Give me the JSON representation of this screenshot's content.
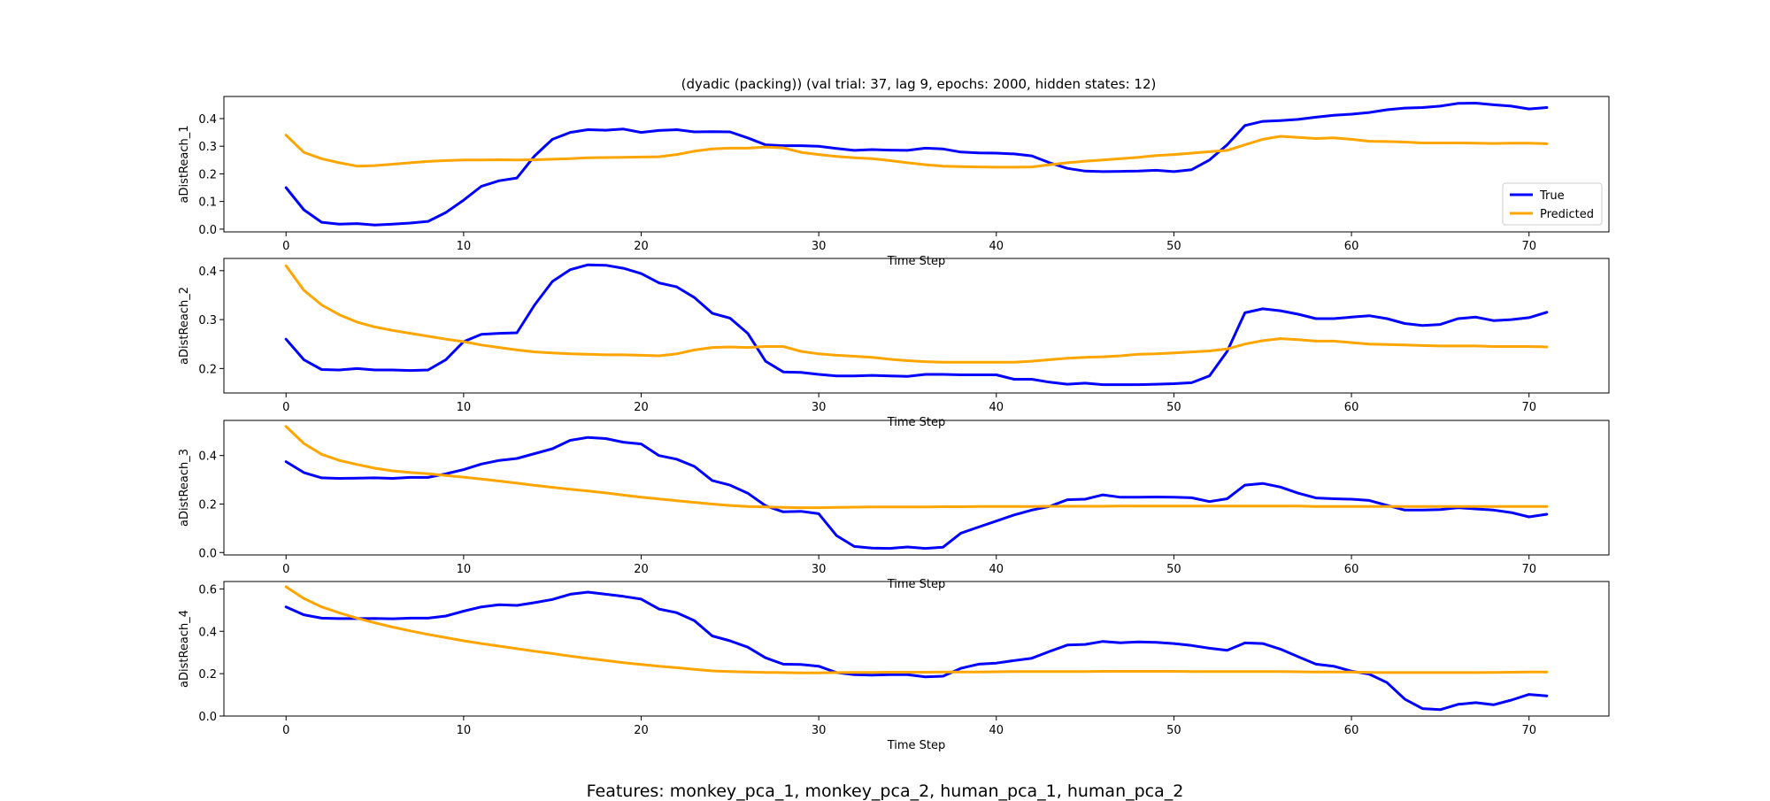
{
  "figure": {
    "title": "(dyadic (packing)) (val trial: 37, lag 9, epochs: 2000, hidden states: 12)",
    "footer": "Features: monkey_pca_1, monkey_pca_2, human_pca_1, human_pca_2"
  },
  "colors": {
    "true": "#0000ff",
    "predicted": "#ffa500"
  },
  "chart_data": [
    {
      "type": "line",
      "xlabel": "Time Step",
      "ylabel": "aDistReach_1",
      "xlim": [
        -3.5,
        74.5
      ],
      "ylim": [
        -0.01,
        0.48
      ],
      "xticks": [
        0,
        10,
        20,
        30,
        40,
        50,
        60,
        70
      ],
      "yticks": [
        0.0,
        0.1,
        0.2,
        0.3,
        0.4
      ],
      "ytick_labels": [
        "0.0",
        "0.1",
        "0.2",
        "0.3",
        "0.4"
      ],
      "legend": {
        "placement": "lower-right",
        "entries": [
          "True",
          "Predicted"
        ]
      },
      "series": [
        {
          "name": "True",
          "values": [
            0.15,
            0.07,
            0.025,
            0.018,
            0.02,
            0.015,
            0.018,
            0.022,
            0.028,
            0.06,
            0.105,
            0.155,
            0.175,
            0.185,
            0.265,
            0.325,
            0.35,
            0.36,
            0.358,
            0.362,
            0.35,
            0.357,
            0.36,
            0.352,
            0.353,
            0.352,
            0.33,
            0.305,
            0.302,
            0.302,
            0.3,
            0.292,
            0.285,
            0.288,
            0.286,
            0.285,
            0.293,
            0.29,
            0.279,
            0.276,
            0.275,
            0.272,
            0.265,
            0.24,
            0.22,
            0.21,
            0.208,
            0.209,
            0.21,
            0.213,
            0.208,
            0.215,
            0.25,
            0.305,
            0.375,
            0.39,
            0.393,
            0.397,
            0.405,
            0.412,
            0.416,
            0.422,
            0.432,
            0.438,
            0.44,
            0.445,
            0.455,
            0.456,
            0.45,
            0.445,
            0.435,
            0.44
          ]
        },
        {
          "name": "Predicted",
          "values": [
            0.34,
            0.278,
            0.255,
            0.24,
            0.228,
            0.23,
            0.235,
            0.24,
            0.245,
            0.248,
            0.25,
            0.25,
            0.251,
            0.25,
            0.251,
            0.253,
            0.255,
            0.258,
            0.259,
            0.26,
            0.261,
            0.262,
            0.27,
            0.282,
            0.29,
            0.293,
            0.293,
            0.297,
            0.294,
            0.278,
            0.27,
            0.263,
            0.258,
            0.255,
            0.248,
            0.24,
            0.233,
            0.228,
            0.226,
            0.225,
            0.224,
            0.224,
            0.225,
            0.233,
            0.24,
            0.246,
            0.25,
            0.255,
            0.26,
            0.266,
            0.27,
            0.275,
            0.28,
            0.285,
            0.305,
            0.325,
            0.336,
            0.332,
            0.328,
            0.33,
            0.325,
            0.318,
            0.317,
            0.315,
            0.312,
            0.312,
            0.312,
            0.311,
            0.31,
            0.311,
            0.311,
            0.309
          ]
        }
      ]
    },
    {
      "type": "line",
      "xlabel": "Time Step",
      "ylabel": "aDistReach_2",
      "xlim": [
        -3.5,
        74.5
      ],
      "ylim": [
        0.15,
        0.425
      ],
      "xticks": [
        0,
        10,
        20,
        30,
        40,
        50,
        60,
        70
      ],
      "yticks": [
        0.2,
        0.3,
        0.4
      ],
      "ytick_labels": [
        "0.2",
        "0.3",
        "0.4"
      ],
      "series": [
        {
          "name": "True",
          "values": [
            0.26,
            0.218,
            0.198,
            0.197,
            0.2,
            0.197,
            0.197,
            0.196,
            0.197,
            0.218,
            0.255,
            0.27,
            0.272,
            0.273,
            0.33,
            0.378,
            0.402,
            0.412,
            0.411,
            0.405,
            0.394,
            0.375,
            0.367,
            0.345,
            0.313,
            0.303,
            0.272,
            0.215,
            0.193,
            0.192,
            0.188,
            0.185,
            0.185,
            0.186,
            0.185,
            0.184,
            0.188,
            0.188,
            0.187,
            0.187,
            0.187,
            0.178,
            0.178,
            0.172,
            0.168,
            0.17,
            0.167,
            0.167,
            0.167,
            0.168,
            0.169,
            0.171,
            0.185,
            0.235,
            0.314,
            0.322,
            0.318,
            0.311,
            0.302,
            0.302,
            0.305,
            0.308,
            0.302,
            0.292,
            0.288,
            0.29,
            0.302,
            0.305,
            0.298,
            0.3,
            0.304,
            0.315
          ]
        },
        {
          "name": "Predicted",
          "values": [
            0.41,
            0.36,
            0.33,
            0.31,
            0.295,
            0.285,
            0.278,
            0.272,
            0.266,
            0.26,
            0.255,
            0.248,
            0.243,
            0.238,
            0.234,
            0.232,
            0.23,
            0.229,
            0.228,
            0.228,
            0.227,
            0.226,
            0.23,
            0.238,
            0.243,
            0.244,
            0.243,
            0.245,
            0.245,
            0.235,
            0.23,
            0.227,
            0.225,
            0.223,
            0.219,
            0.216,
            0.214,
            0.213,
            0.213,
            0.213,
            0.213,
            0.213,
            0.215,
            0.218,
            0.221,
            0.223,
            0.224,
            0.226,
            0.229,
            0.23,
            0.232,
            0.234,
            0.236,
            0.24,
            0.25,
            0.257,
            0.261,
            0.259,
            0.256,
            0.256,
            0.253,
            0.25,
            0.249,
            0.248,
            0.247,
            0.246,
            0.246,
            0.246,
            0.245,
            0.245,
            0.245,
            0.244
          ]
        }
      ]
    },
    {
      "type": "line",
      "xlabel": "Time Step",
      "ylabel": "aDistReach_3",
      "xlim": [
        -3.5,
        74.5
      ],
      "ylim": [
        -0.01,
        0.545
      ],
      "xticks": [
        0,
        10,
        20,
        30,
        40,
        50,
        60,
        70
      ],
      "yticks": [
        0.0,
        0.2,
        0.4
      ],
      "ytick_labels": [
        "0.0",
        "0.2",
        "0.4"
      ],
      "series": [
        {
          "name": "True",
          "values": [
            0.375,
            0.33,
            0.308,
            0.306,
            0.307,
            0.308,
            0.306,
            0.31,
            0.31,
            0.325,
            0.342,
            0.365,
            0.38,
            0.388,
            0.408,
            0.428,
            0.463,
            0.475,
            0.47,
            0.455,
            0.448,
            0.4,
            0.385,
            0.355,
            0.297,
            0.278,
            0.245,
            0.193,
            0.168,
            0.17,
            0.16,
            0.07,
            0.025,
            0.018,
            0.017,
            0.023,
            0.017,
            0.022,
            0.08,
            0.105,
            0.13,
            0.155,
            0.175,
            0.19,
            0.218,
            0.22,
            0.238,
            0.228,
            0.228,
            0.229,
            0.228,
            0.226,
            0.21,
            0.222,
            0.278,
            0.285,
            0.27,
            0.245,
            0.225,
            0.222,
            0.22,
            0.215,
            0.195,
            0.175,
            0.175,
            0.177,
            0.185,
            0.18,
            0.175,
            0.165,
            0.147,
            0.158
          ]
        },
        {
          "name": "Predicted",
          "values": [
            0.52,
            0.45,
            0.405,
            0.38,
            0.363,
            0.348,
            0.337,
            0.33,
            0.325,
            0.318,
            0.311,
            0.303,
            0.295,
            0.286,
            0.277,
            0.269,
            0.261,
            0.254,
            0.246,
            0.237,
            0.228,
            0.221,
            0.214,
            0.207,
            0.2,
            0.194,
            0.19,
            0.188,
            0.186,
            0.185,
            0.185,
            0.186,
            0.187,
            0.188,
            0.188,
            0.188,
            0.188,
            0.189,
            0.189,
            0.19,
            0.19,
            0.19,
            0.19,
            0.191,
            0.191,
            0.191,
            0.191,
            0.192,
            0.192,
            0.192,
            0.192,
            0.192,
            0.192,
            0.192,
            0.192,
            0.192,
            0.192,
            0.192,
            0.19,
            0.19,
            0.19,
            0.19,
            0.19,
            0.19,
            0.19,
            0.19,
            0.19,
            0.19,
            0.19,
            0.19,
            0.19,
            0.19
          ]
        }
      ]
    },
    {
      "type": "line",
      "xlabel": "Time Step",
      "ylabel": "aDistReach_4",
      "xlim": [
        -3.5,
        74.5
      ],
      "ylim": [
        0.0,
        0.635
      ],
      "xticks": [
        0,
        10,
        20,
        30,
        40,
        50,
        60,
        70
      ],
      "yticks": [
        0.0,
        0.2,
        0.4,
        0.6
      ],
      "ytick_labels": [
        "0.0",
        "0.2",
        "0.4",
        "0.6"
      ],
      "series": [
        {
          "name": "True",
          "values": [
            0.515,
            0.478,
            0.462,
            0.46,
            0.46,
            0.461,
            0.459,
            0.462,
            0.462,
            0.472,
            0.495,
            0.515,
            0.525,
            0.522,
            0.535,
            0.55,
            0.575,
            0.585,
            0.575,
            0.565,
            0.552,
            0.505,
            0.488,
            0.45,
            0.378,
            0.355,
            0.325,
            0.275,
            0.245,
            0.243,
            0.235,
            0.205,
            0.195,
            0.193,
            0.195,
            0.195,
            0.185,
            0.188,
            0.225,
            0.245,
            0.25,
            0.262,
            0.273,
            0.305,
            0.335,
            0.338,
            0.352,
            0.346,
            0.35,
            0.348,
            0.342,
            0.333,
            0.32,
            0.31,
            0.345,
            0.342,
            0.316,
            0.28,
            0.245,
            0.235,
            0.212,
            0.198,
            0.158,
            0.08,
            0.035,
            0.03,
            0.055,
            0.063,
            0.053,
            0.075,
            0.102,
            0.095
          ]
        },
        {
          "name": "Predicted",
          "values": [
            0.61,
            0.555,
            0.515,
            0.487,
            0.462,
            0.44,
            0.42,
            0.402,
            0.385,
            0.37,
            0.355,
            0.342,
            0.33,
            0.318,
            0.306,
            0.295,
            0.283,
            0.272,
            0.262,
            0.252,
            0.243,
            0.235,
            0.228,
            0.22,
            0.213,
            0.21,
            0.208,
            0.206,
            0.205,
            0.204,
            0.204,
            0.205,
            0.206,
            0.206,
            0.207,
            0.207,
            0.207,
            0.208,
            0.208,
            0.208,
            0.209,
            0.21,
            0.21,
            0.21,
            0.21,
            0.21,
            0.211,
            0.211,
            0.211,
            0.211,
            0.211,
            0.21,
            0.21,
            0.21,
            0.21,
            0.21,
            0.21,
            0.209,
            0.208,
            0.208,
            0.208,
            0.206,
            0.205,
            0.205,
            0.205,
            0.205,
            0.205,
            0.205,
            0.206,
            0.207,
            0.208,
            0.208
          ]
        }
      ]
    }
  ]
}
